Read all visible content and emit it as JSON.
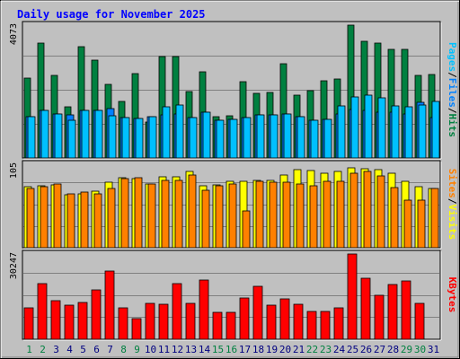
{
  "title": "Daily usage for November 2025",
  "colors": {
    "background": "#c0c0c0",
    "panel": "#c0c0c0",
    "title": "#0000ff",
    "hits": "#008040",
    "files": "#0080ff",
    "pages": "#00c0ff",
    "visits": "#ffff00",
    "sites": "#ff8000",
    "kbytes": "#ff0000",
    "weekend_day": "#008040",
    "weekday_day": "#000080"
  },
  "chart_data": [
    {
      "type": "bar",
      "panel": "hits-files-pages",
      "categories": [
        "1",
        "2",
        "3",
        "4",
        "5",
        "6",
        "7",
        "8",
        "9",
        "10",
        "11",
        "12",
        "13",
        "14",
        "15",
        "16",
        "17",
        "18",
        "19",
        "20",
        "21",
        "22",
        "23",
        "24",
        "25",
        "26",
        "27",
        "28",
        "29",
        "30",
        "31"
      ],
      "ymax_label": "4073",
      "ylim": [
        0,
        4073
      ],
      "side_label": [
        "Pages",
        "Files",
        "Hits"
      ],
      "series": [
        {
          "name": "Hits",
          "values": [
            2460,
            3520,
            2520,
            1560,
            3400,
            3010,
            2260,
            1740,
            2590,
            1100,
            3120,
            3120,
            2040,
            2640,
            1260,
            1280,
            2350,
            1970,
            2000,
            2880,
            1920,
            2070,
            2360,
            2420,
            4073,
            3570,
            3510,
            3340,
            3320,
            2530,
            2560
          ]
        },
        {
          "name": "Files",
          "values": [
            1270,
            1470,
            1360,
            1330,
            1460,
            1450,
            1520,
            1240,
            1200,
            1260,
            1320,
            1340,
            1250,
            1400,
            1160,
            1180,
            1230,
            1330,
            1320,
            1340,
            1260,
            1150,
            1170,
            1340,
            1490,
            1470,
            1410,
            1400,
            1360,
            1720,
            1230
          ]
        },
        {
          "name": "Pages",
          "values": [
            1270,
            1470,
            1360,
            1150,
            1460,
            1450,
            1290,
            1240,
            1200,
            1260,
            1580,
            1610,
            1250,
            1400,
            1160,
            1180,
            1230,
            1330,
            1320,
            1340,
            1260,
            1150,
            1170,
            1600,
            1880,
            1930,
            1840,
            1600,
            1560,
            1610,
            1730
          ]
        }
      ]
    },
    {
      "type": "bar",
      "panel": "visits-sites",
      "categories": [
        "1",
        "2",
        "3",
        "4",
        "5",
        "6",
        "7",
        "8",
        "9",
        "10",
        "11",
        "12",
        "13",
        "14",
        "15",
        "16",
        "17",
        "18",
        "19",
        "20",
        "21",
        "22",
        "23",
        "24",
        "25",
        "26",
        "27",
        "28",
        "29",
        "30",
        "31"
      ],
      "ymax_label": "105",
      "ylim": [
        0,
        105
      ],
      "side_label": [
        "Sites",
        "Visits"
      ],
      "series": [
        {
          "name": "Visits",
          "values": [
            77,
            78,
            79,
            67,
            68,
            71,
            82,
            88,
            87,
            80,
            89,
            89,
            96,
            78,
            79,
            83,
            84,
            85,
            85,
            91,
            98,
            97,
            94,
            96,
            100,
            99,
            98,
            94,
            83,
            77,
            75
          ]
        },
        {
          "name": "Sites",
          "values": [
            75,
            77,
            80,
            68,
            70,
            68,
            75,
            87,
            88,
            80,
            85,
            85,
            92,
            72,
            78,
            80,
            46,
            83,
            82,
            82,
            80,
            78,
            84,
            83,
            94,
            96,
            90,
            76,
            60,
            60,
            74
          ]
        }
      ]
    },
    {
      "type": "bar",
      "panel": "kbytes",
      "categories": [
        "1",
        "2",
        "3",
        "4",
        "5",
        "6",
        "7",
        "8",
        "9",
        "10",
        "11",
        "12",
        "13",
        "14",
        "15",
        "16",
        "17",
        "18",
        "19",
        "20",
        "21",
        "22",
        "23",
        "24",
        "25",
        "26",
        "27",
        "28",
        "29",
        "30",
        "31"
      ],
      "ymax_label": "30247",
      "ylim": [
        0,
        30247
      ],
      "side_label": [
        "KBytes"
      ],
      "series": [
        {
          "name": "KBytes",
          "values": [
            11280,
            19880,
            13580,
            12050,
            13040,
            17380,
            24290,
            11280,
            7480,
            12630,
            12450,
            19880,
            12890,
            20930,
            9450,
            9450,
            14520,
            18700,
            12000,
            14230,
            12460,
            9720,
            9830,
            11290,
            30247,
            21800,
            15620,
            19580,
            20640,
            12890,
            0
          ]
        }
      ]
    }
  ]
}
